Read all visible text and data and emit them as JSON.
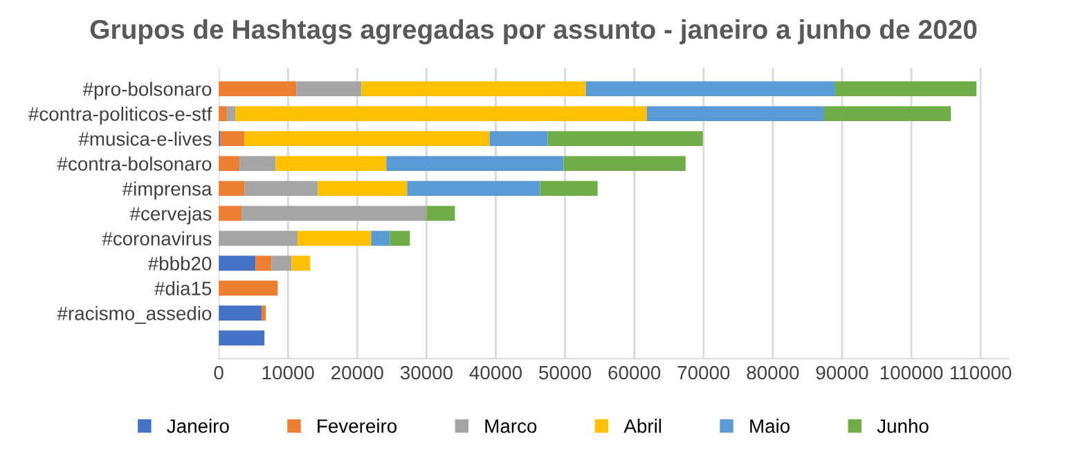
{
  "chart_data": {
    "type": "bar",
    "orientation": "horizontal",
    "stacked": true,
    "title": "Grupos de Hashtags agregadas por assunto - janeiro a junho de 2020",
    "categories": [
      "#pro-bolsonaro",
      "#contra-politicos-e-stf",
      "#musica-e-lives",
      "#contra-bolsonaro",
      "#imprensa",
      "#cervejas",
      "#coronavirus",
      "#bbb20",
      "#dia15",
      "#racismo_assedio",
      null
    ],
    "series": [
      {
        "name": "Janeiro",
        "color": "#4472c4",
        "values": [
          0,
          0,
          200,
          0,
          0,
          0,
          0,
          5300,
          0,
          6200,
          6600
        ]
      },
      {
        "name": "Fevereiro",
        "color": "#ed7d31",
        "values": [
          11200,
          1200,
          3500,
          3000,
          3700,
          3300,
          0,
          2300,
          8500,
          600,
          0
        ]
      },
      {
        "name": "Marco",
        "color": "#a5a5a5",
        "values": [
          9400,
          1200,
          0,
          5200,
          10600,
          26700,
          11400,
          2900,
          0,
          0,
          0
        ]
      },
      {
        "name": "Abril",
        "color": "#ffc000",
        "values": [
          32400,
          59400,
          35400,
          16000,
          12900,
          0,
          10600,
          2700,
          0,
          0,
          0
        ]
      },
      {
        "name": "Maio",
        "color": "#5b9bd5",
        "values": [
          36000,
          25600,
          8400,
          25600,
          19200,
          0,
          2700,
          0,
          0,
          0,
          0
        ]
      },
      {
        "name": "Junho",
        "color": "#70ad47",
        "values": [
          20400,
          18300,
          22400,
          17600,
          8300,
          4100,
          2900,
          0,
          0,
          0,
          0
        ]
      }
    ],
    "xlim": [
      0,
      114000
    ],
    "xticks": [
      0,
      10000,
      20000,
      30000,
      40000,
      50000,
      60000,
      70000,
      80000,
      90000,
      100000,
      110000
    ],
    "grid": "x",
    "legend": "bottom"
  }
}
